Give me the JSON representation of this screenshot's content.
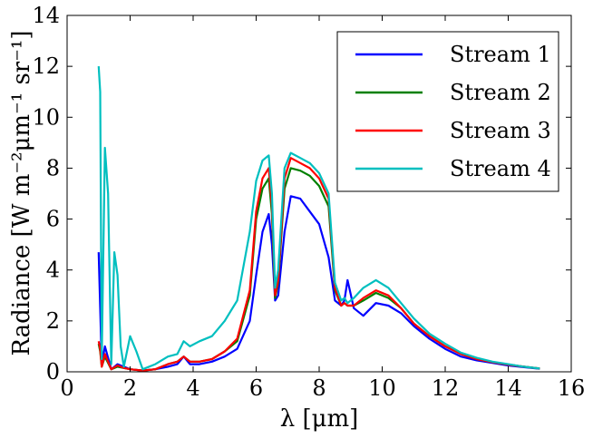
{
  "chart_data": {
    "type": "line",
    "xlabel": "λ [μm]",
    "ylabel": "Radiance [W m⁻²μm⁻¹ sr⁻¹]",
    "xlim": [
      0,
      16
    ],
    "ylim": [
      0,
      14
    ],
    "xticks": [
      "0",
      "2",
      "4",
      "6",
      "8",
      "10",
      "12",
      "14",
      "16"
    ],
    "yticks": [
      "0",
      "2",
      "4",
      "6",
      "8",
      "10",
      "12",
      "14"
    ],
    "legend_position": "top-right",
    "grid": false,
    "series": [
      {
        "name": "Stream 1",
        "color": "#0000ff",
        "x": [
          1.0,
          1.05,
          1.1,
          1.2,
          1.4,
          1.6,
          1.8,
          2.0,
          2.4,
          2.8,
          3.2,
          3.5,
          3.7,
          3.9,
          4.2,
          4.6,
          5.0,
          5.4,
          5.8,
          6.0,
          6.2,
          6.4,
          6.5,
          6.6,
          6.7,
          6.9,
          7.1,
          7.4,
          7.7,
          8.0,
          8.3,
          8.5,
          8.7,
          8.8,
          8.9,
          9.1,
          9.4,
          9.8,
          10.2,
          10.6,
          11.0,
          11.5,
          12.0,
          12.5,
          13.0,
          13.5,
          14.0,
          14.5,
          15.0
        ],
        "y": [
          4.7,
          2.5,
          0.3,
          1.0,
          0.1,
          0.3,
          0.2,
          0.1,
          0.05,
          0.1,
          0.2,
          0.3,
          0.6,
          0.3,
          0.3,
          0.4,
          0.6,
          0.9,
          2.0,
          3.8,
          5.5,
          6.2,
          5.0,
          2.8,
          3.0,
          5.5,
          6.9,
          6.8,
          6.3,
          5.8,
          4.5,
          2.8,
          2.6,
          2.8,
          3.6,
          2.5,
          2.2,
          2.7,
          2.6,
          2.3,
          1.8,
          1.3,
          0.9,
          0.6,
          0.45,
          0.35,
          0.25,
          0.18,
          0.12
        ]
      },
      {
        "name": "Stream 2",
        "color": "#008000",
        "x": [
          1.0,
          1.05,
          1.1,
          1.2,
          1.4,
          1.6,
          1.8,
          2.0,
          2.4,
          2.8,
          3.2,
          3.5,
          3.7,
          3.9,
          4.2,
          4.6,
          5.0,
          5.4,
          5.8,
          6.0,
          6.2,
          6.4,
          6.5,
          6.6,
          6.7,
          6.9,
          7.1,
          7.4,
          7.7,
          8.0,
          8.3,
          8.5,
          8.7,
          8.8,
          8.9,
          9.1,
          9.4,
          9.8,
          10.2,
          10.6,
          11.0,
          11.5,
          12.0,
          12.5,
          13.0,
          13.5,
          14.0,
          14.5,
          15.0
        ],
        "y": [
          1.1,
          0.8,
          0.2,
          0.6,
          0.1,
          0.2,
          0.15,
          0.1,
          0.05,
          0.1,
          0.3,
          0.4,
          0.6,
          0.4,
          0.4,
          0.5,
          0.8,
          1.2,
          3.0,
          6.0,
          7.2,
          7.6,
          6.2,
          2.9,
          3.5,
          7.2,
          8.0,
          7.9,
          7.7,
          7.3,
          6.5,
          3.2,
          2.6,
          2.7,
          2.6,
          2.6,
          2.8,
          3.1,
          2.9,
          2.5,
          1.9,
          1.4,
          1.0,
          0.7,
          0.5,
          0.38,
          0.28,
          0.2,
          0.13
        ]
      },
      {
        "name": "Stream 3",
        "color": "#ff0000",
        "x": [
          1.0,
          1.05,
          1.1,
          1.2,
          1.4,
          1.6,
          1.8,
          2.0,
          2.4,
          2.8,
          3.2,
          3.5,
          3.7,
          3.9,
          4.2,
          4.6,
          5.0,
          5.4,
          5.8,
          6.0,
          6.2,
          6.4,
          6.5,
          6.6,
          6.7,
          6.9,
          7.1,
          7.4,
          7.7,
          8.0,
          8.3,
          8.5,
          8.7,
          8.8,
          8.9,
          9.1,
          9.4,
          9.8,
          10.2,
          10.6,
          11.0,
          11.5,
          12.0,
          12.5,
          13.0,
          13.5,
          14.0,
          14.5,
          15.0
        ],
        "y": [
          1.2,
          0.9,
          0.2,
          0.7,
          0.1,
          0.25,
          0.15,
          0.1,
          0.05,
          0.1,
          0.3,
          0.4,
          0.6,
          0.4,
          0.4,
          0.5,
          0.8,
          1.3,
          3.2,
          6.3,
          7.6,
          8.0,
          6.5,
          3.0,
          3.6,
          7.6,
          8.4,
          8.2,
          8.0,
          7.6,
          6.8,
          3.3,
          2.6,
          2.7,
          2.6,
          2.6,
          2.9,
          3.2,
          3.0,
          2.5,
          1.9,
          1.4,
          1.0,
          0.7,
          0.5,
          0.38,
          0.28,
          0.2,
          0.13
        ]
      },
      {
        "name": "Stream 4",
        "color": "#00bfbf",
        "x": [
          1.0,
          1.05,
          1.1,
          1.2,
          1.3,
          1.4,
          1.5,
          1.6,
          1.7,
          1.8,
          2.0,
          2.2,
          2.4,
          2.8,
          3.2,
          3.5,
          3.7,
          3.9,
          4.2,
          4.6,
          5.0,
          5.4,
          5.8,
          6.0,
          6.2,
          6.4,
          6.5,
          6.6,
          6.7,
          6.9,
          7.1,
          7.4,
          7.7,
          8.0,
          8.3,
          8.5,
          8.7,
          8.8,
          8.9,
          9.1,
          9.4,
          9.8,
          10.2,
          10.6,
          11.0,
          11.5,
          12.0,
          12.5,
          13.0,
          13.5,
          14.0,
          14.5,
          15.0
        ],
        "y": [
          12.0,
          11.0,
          0.5,
          8.8,
          7.0,
          0.3,
          4.7,
          3.8,
          1.0,
          0.2,
          1.4,
          0.8,
          0.1,
          0.3,
          0.6,
          0.7,
          1.2,
          1.0,
          1.2,
          1.4,
          2.0,
          2.8,
          5.5,
          7.5,
          8.3,
          8.5,
          7.0,
          3.3,
          4.0,
          8.0,
          8.6,
          8.4,
          8.2,
          7.8,
          7.0,
          3.5,
          2.8,
          2.9,
          2.7,
          2.9,
          3.3,
          3.6,
          3.3,
          2.7,
          2.1,
          1.5,
          1.1,
          0.75,
          0.55,
          0.4,
          0.3,
          0.2,
          0.13
        ]
      }
    ]
  }
}
